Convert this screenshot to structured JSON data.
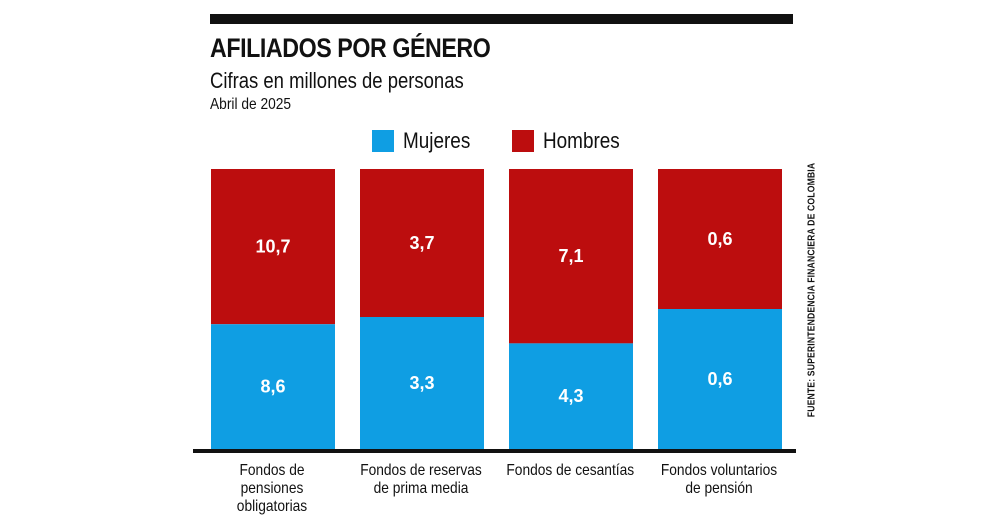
{
  "colors": {
    "mujeres": "#0f9ee3",
    "hombres": "#bc0d0e",
    "text": "#111111"
  },
  "source": "FUENTE: SUPERINTENDENCIA FINANCIERA DE COLOMBIA",
  "chart_data": {
    "type": "bar",
    "stacked": true,
    "normalized": true,
    "title": "AFILIADOS POR GÉNERO",
    "subtitle": "Cifras en millones de personas",
    "date": "Abril de 2025",
    "categories": [
      "Fondos de pensiones obligatorias",
      "Fondos de reservas de prima media",
      "Fondos de cesantías",
      "Fondos voluntarios de pensión"
    ],
    "series": [
      {
        "name": "Mujeres",
        "values": [
          8.6,
          3.3,
          4.3,
          0.6
        ],
        "labels": [
          "8,6",
          "3,3",
          "4,3",
          "0,6"
        ]
      },
      {
        "name": "Hombres",
        "values": [
          10.7,
          3.7,
          7.1,
          0.6
        ],
        "labels": [
          "10,7",
          "3,7",
          "7,1",
          "0,6"
        ]
      }
    ],
    "legend_position": "top",
    "xlabel": "",
    "ylabel": ""
  }
}
